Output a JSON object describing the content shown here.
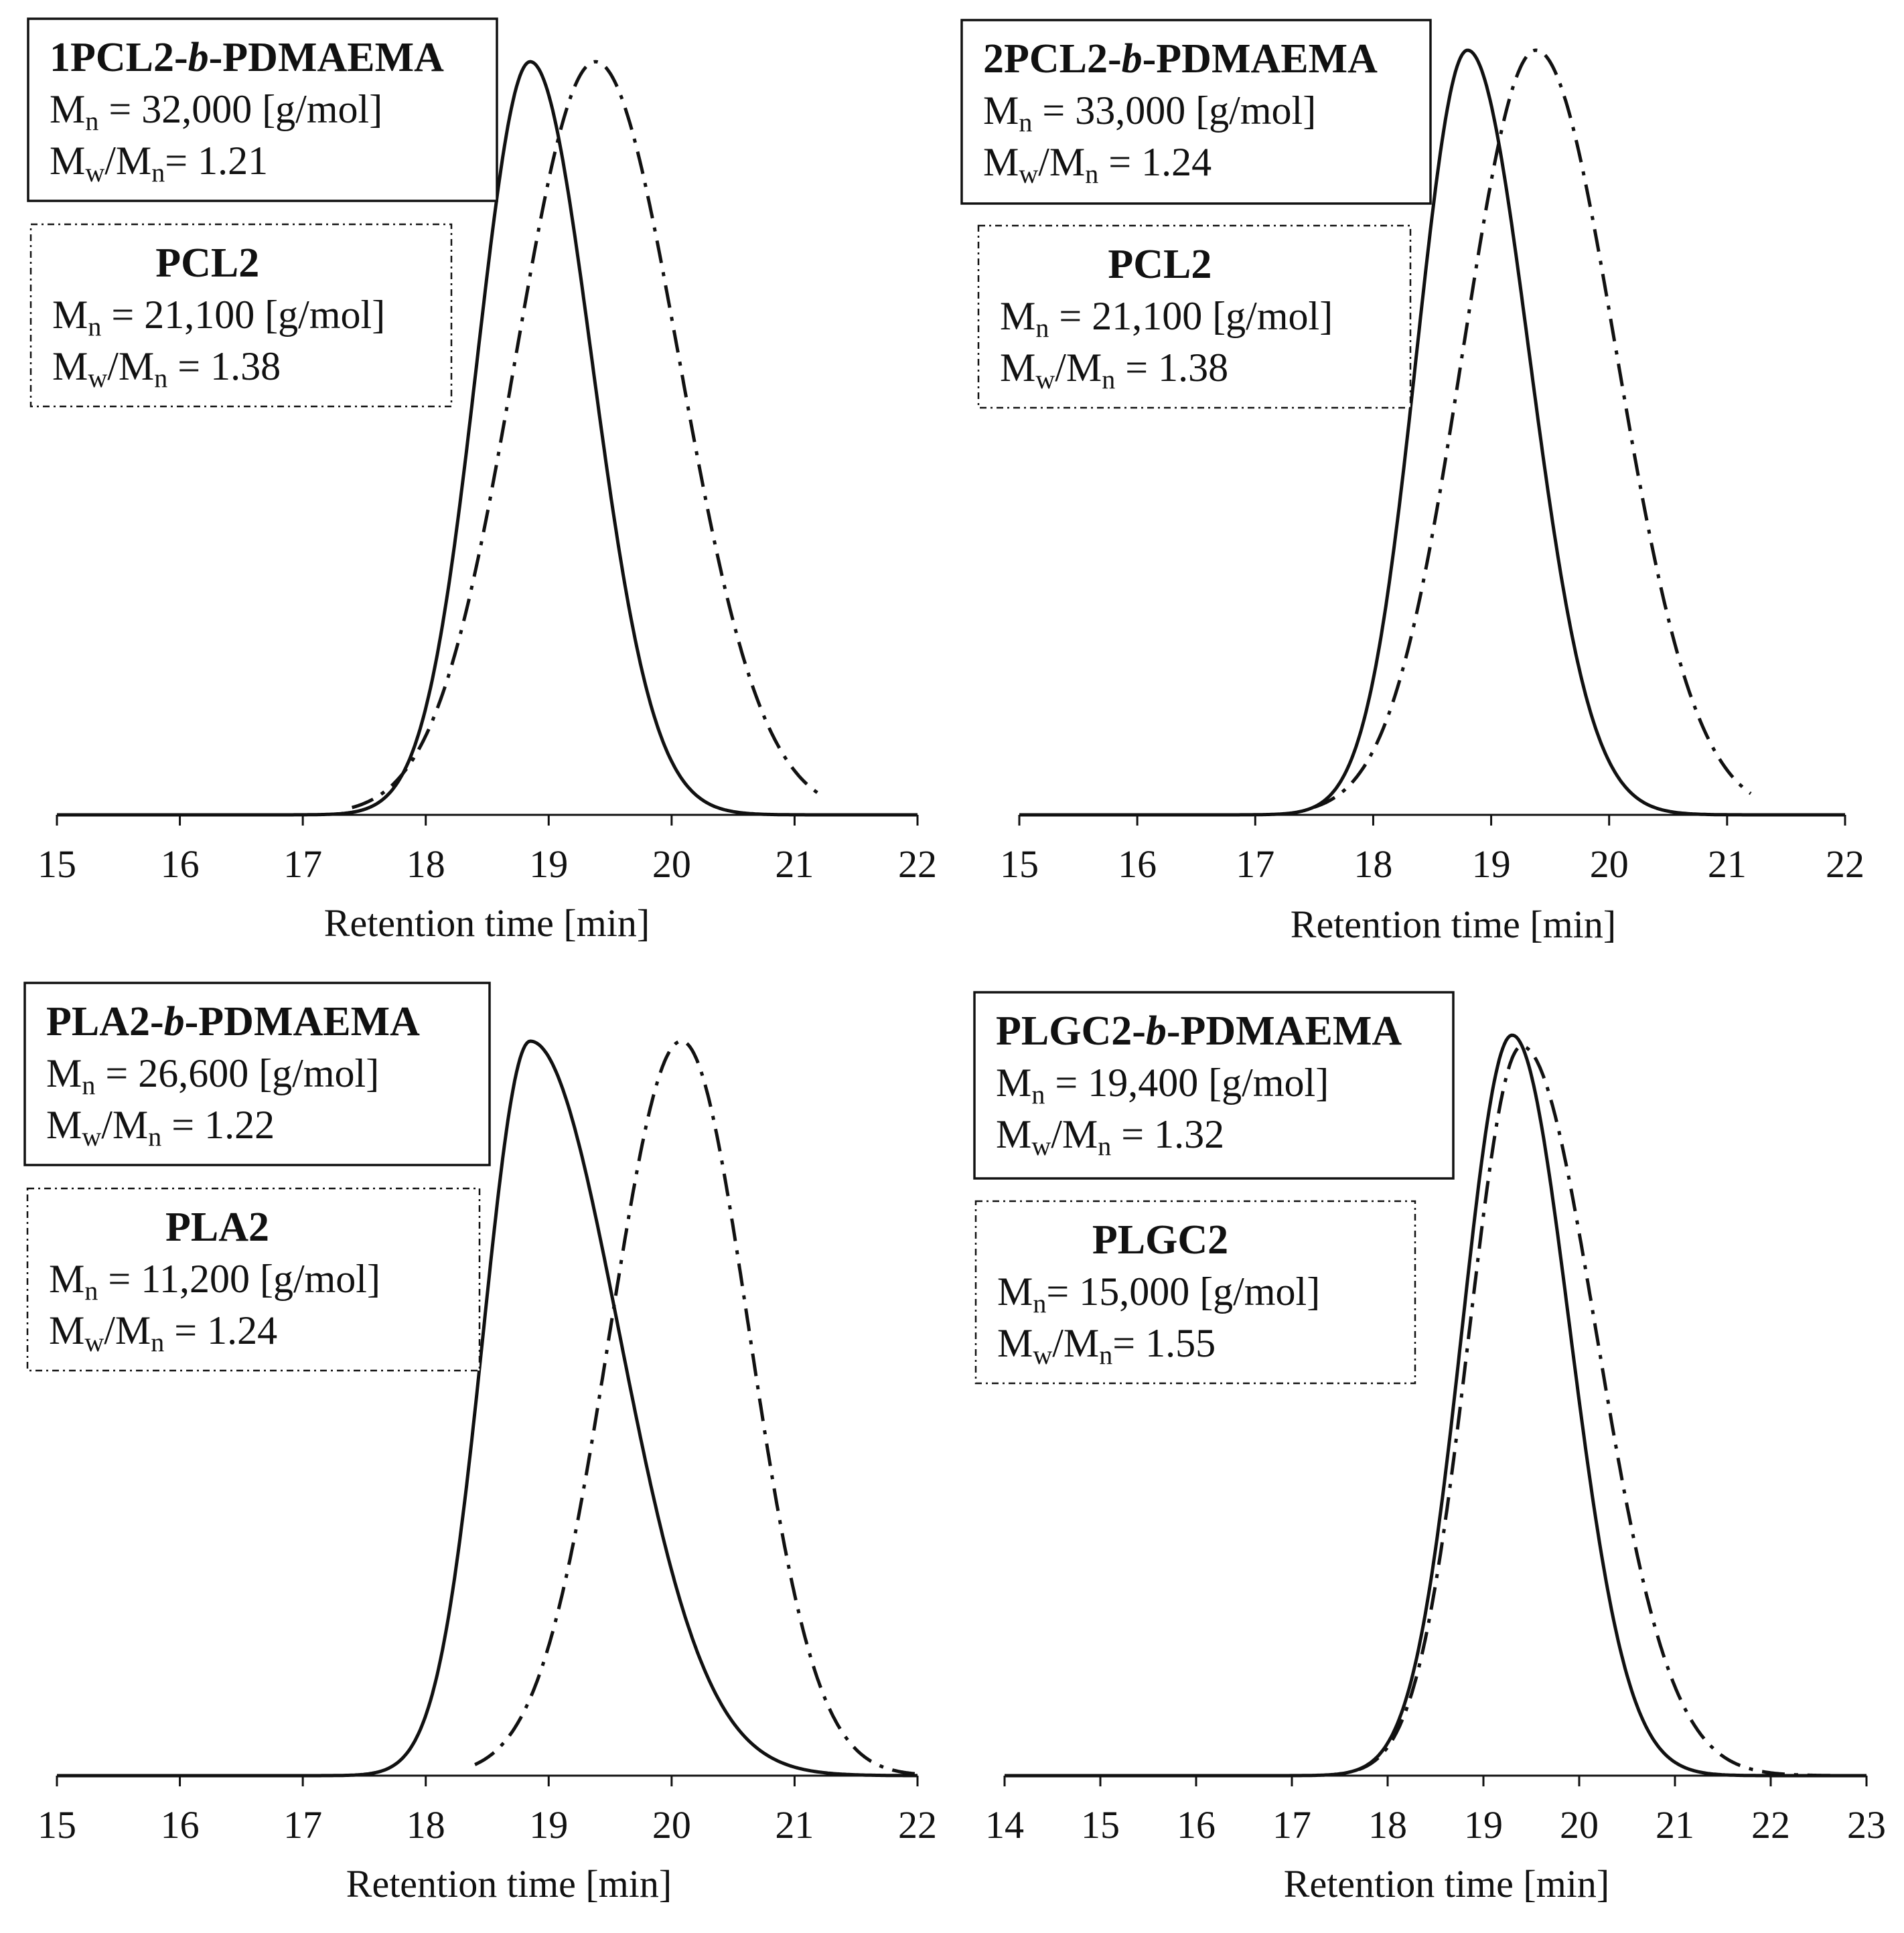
{
  "figure": {
    "background": "#ffffff",
    "line_color": "#111111"
  },
  "chart_data": [
    {
      "type": "line",
      "xlabel": "Retention  time  [min]",
      "ylabel": "",
      "xlim": [
        15,
        22
      ],
      "xticks": [
        15,
        16,
        17,
        18,
        19,
        20,
        21,
        22
      ],
      "ylim": [
        0,
        1.0
      ],
      "grid": false,
      "series": [
        {
          "name": "1PCL2-b-PDMAEMA",
          "style": "solid",
          "peak": 18.85,
          "height": 0.985,
          "sigma_left": 0.43,
          "sigma_right": 0.5,
          "start": 15.0,
          "end": 22.0,
          "box": {
            "style": "solid",
            "title_parts": [
              "1PCL2-",
              "b",
              "-PDMAEMA"
            ],
            "mn_text": " = 32,000 [g/mol]",
            "pdi_text": "= 1.21"
          }
        },
        {
          "name": "PCL2",
          "style": "dash-dot",
          "peak": 19.38,
          "height": 0.985,
          "sigma_left": 0.65,
          "sigma_right": 0.68,
          "start": 17.4,
          "end": 21.2,
          "box": {
            "style": "dash-dot",
            "title_parts": [
              "PCL2"
            ],
            "mn_text": " = 21,100 [g/mol]",
            "pdi_text": " = 1.38"
          }
        }
      ]
    },
    {
      "type": "line",
      "xlabel": "Retention  time  [min]",
      "ylabel": "",
      "xlim": [
        15,
        22
      ],
      "xticks": [
        15,
        16,
        17,
        18,
        19,
        20,
        21,
        22
      ],
      "ylim": [
        0,
        1.0
      ],
      "grid": false,
      "series": [
        {
          "name": "2PCL2-b-PDMAEMA",
          "style": "solid",
          "peak": 18.8,
          "height": 1.0,
          "sigma_left": 0.43,
          "sigma_right": 0.52,
          "start": 15.0,
          "end": 22.0,
          "box": {
            "style": "solid",
            "title_parts": [
              "2PCL2-",
              "b",
              "-PDMAEMA"
            ],
            "mn_text": " = 33,000 [g/mol]",
            "pdi_text": " = 1.24"
          }
        },
        {
          "name": "PCL2",
          "style": "dash-dot",
          "peak": 19.38,
          "height": 1.0,
          "sigma_left": 0.62,
          "sigma_right": 0.68,
          "start": 17.5,
          "end": 21.2,
          "box": {
            "style": "dash-dot",
            "title_parts": [
              "PCL2"
            ],
            "mn_text": " = 21,100 [g/mol]",
            "pdi_text": " = 1.38"
          }
        }
      ]
    },
    {
      "type": "line",
      "xlabel": "Retention  time  [min]",
      "ylabel": "",
      "xlim": [
        15,
        22
      ],
      "xticks": [
        15,
        16,
        17,
        18,
        19,
        20,
        21,
        22
      ],
      "ylim": [
        0,
        1.0
      ],
      "grid": false,
      "series": [
        {
          "name": "PLA2-b-PDMAEMA",
          "style": "solid",
          "peak": 18.85,
          "height": 1.0,
          "sigma_left": 0.38,
          "sigma_right": 0.72,
          "start": 15.0,
          "end": 22.0,
          "box": {
            "style": "solid",
            "title_parts": [
              "PLA2-",
              "b",
              "-PDMAEMA"
            ],
            "mn_text": " = 26,600 [g/mol]",
            "pdi_text": " = 1.22"
          }
        },
        {
          "name": "PLA2",
          "style": "dash-dot",
          "peak": 20.08,
          "height": 1.0,
          "sigma_left": 0.58,
          "sigma_right": 0.55,
          "start": 18.4,
          "end": 22.0,
          "box": {
            "style": "dash-dot",
            "title_parts": [
              "PLA2"
            ],
            "mn_text": " = 11,200 [g/mol]",
            "pdi_text": " = 1.24"
          }
        }
      ]
    },
    {
      "type": "line",
      "xlabel": "Retention  time  [min]",
      "ylabel": "",
      "xlim": [
        14,
        23
      ],
      "xticks": [
        14,
        15,
        16,
        17,
        18,
        19,
        20,
        21,
        22,
        23
      ],
      "ylim": [
        0,
        1.0
      ],
      "grid": false,
      "series": [
        {
          "name": "PLGC2-b-PDMAEMA",
          "style": "solid",
          "peak": 19.3,
          "height": 1.0,
          "sigma_left": 0.52,
          "sigma_right": 0.6,
          "start": 14.0,
          "end": 23.0,
          "box": {
            "style": "solid",
            "title_parts": [
              "PLGC2-",
              "b",
              "-PDMAEMA"
            ],
            "mn_text": " = 19,400 [g/mol]",
            "pdi_text": " = 1.32"
          }
        },
        {
          "name": "PLGC2",
          "style": "dash-dot",
          "peak": 19.4,
          "height": 0.985,
          "sigma_left": 0.55,
          "sigma_right": 0.78,
          "start": 17.7,
          "end": 22.7,
          "box": {
            "style": "dash-dot",
            "title_parts": [
              "PLGC2"
            ],
            "mn_text": "= 15,000 [g/mol]",
            "pdi_text": "= 1.55"
          }
        }
      ]
    }
  ]
}
